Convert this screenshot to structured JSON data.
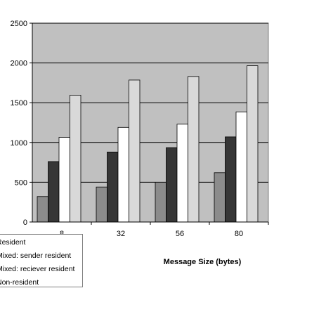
{
  "chart_data": {
    "type": "bar",
    "title": "",
    "xlabel": "Message Size (bytes)",
    "ylabel": "",
    "categories": [
      "8",
      "32",
      "56",
      "80"
    ],
    "ylim": [
      0,
      2500
    ],
    "yticks": [
      "0",
      "500",
      "1000",
      "1500",
      "2000",
      "2500"
    ],
    "grid": true,
    "legend_position": "bottom-left",
    "series": [
      {
        "name": "Resident",
        "color": "#8c8c8c",
        "values": [
          320,
          440,
          500,
          620
        ]
      },
      {
        "name": "Mixed: sender resident",
        "color": "#363636",
        "values": [
          760,
          880,
          935,
          1070
        ]
      },
      {
        "name": "Mixed: reciever resident",
        "color": "#ffffff",
        "values": [
          1065,
          1190,
          1230,
          1385
        ]
      },
      {
        "name": "Non-resident",
        "color": "#d9d9d9",
        "values": [
          1595,
          1785,
          1830,
          1965
        ]
      }
    ],
    "plot_background": "#c0c0c0"
  }
}
